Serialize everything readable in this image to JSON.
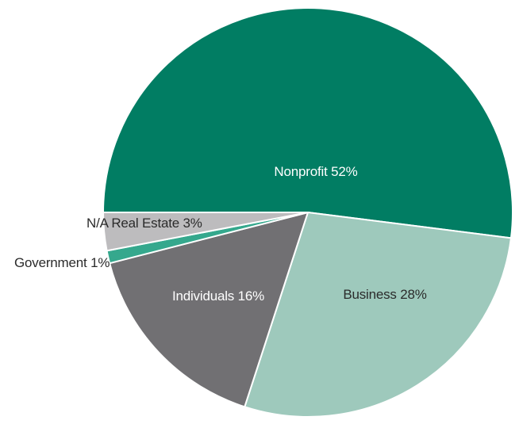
{
  "chart_data": {
    "type": "pie",
    "title": "",
    "slices": [
      {
        "label": "Nonprofit 52%",
        "category": "Nonprofit",
        "value": 52,
        "color": "#017d63",
        "label_color": "#ffffff"
      },
      {
        "label": "Business 28%",
        "category": "Business",
        "value": 28,
        "color": "#9ec9bc",
        "label_color": "#2b2b2b"
      },
      {
        "label": "Individuals 16%",
        "category": "Individuals",
        "value": 16,
        "color": "#717073",
        "label_color": "#ffffff"
      },
      {
        "label": "Government 1%",
        "category": "Government",
        "value": 1,
        "color": "#35a88d",
        "label_color": "#2b2b2b"
      },
      {
        "label": "N/A Real Estate 3%",
        "category": "N/A Real Estate",
        "value": 3,
        "color": "#bdbcbe",
        "label_color": "#2b2b2b"
      }
    ]
  }
}
